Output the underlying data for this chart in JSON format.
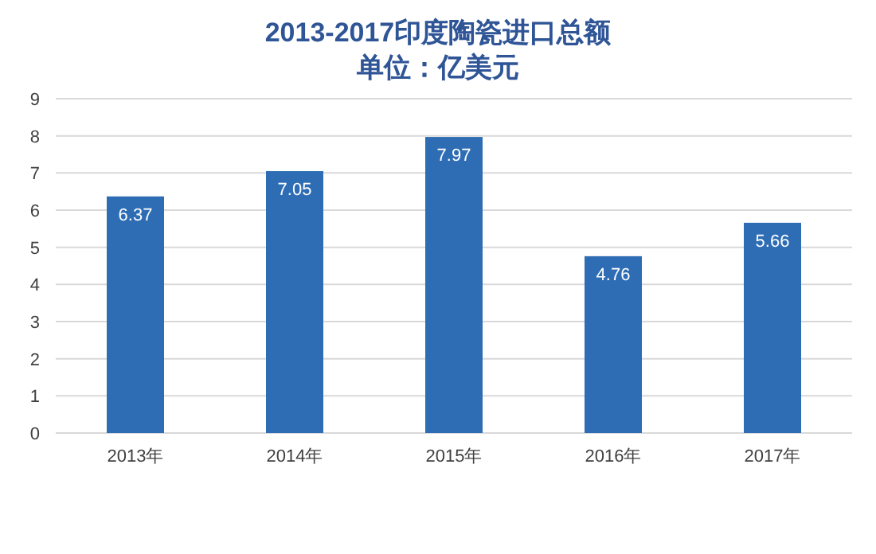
{
  "chart_data": {
    "type": "bar",
    "title": "2013-2017印度陶瓷进口总额",
    "subtitle": "单位：亿美元",
    "categories": [
      "2013年",
      "2014年",
      "2015年",
      "2016年",
      "2017年"
    ],
    "values": [
      6.37,
      7.05,
      7.97,
      4.76,
      5.66
    ],
    "color": "#2e6db4",
    "ylim": [
      0,
      9
    ],
    "yticks": [
      0,
      1,
      2,
      3,
      4,
      5,
      6,
      7,
      8,
      9
    ],
    "grid": "y",
    "data_labels": true
  }
}
